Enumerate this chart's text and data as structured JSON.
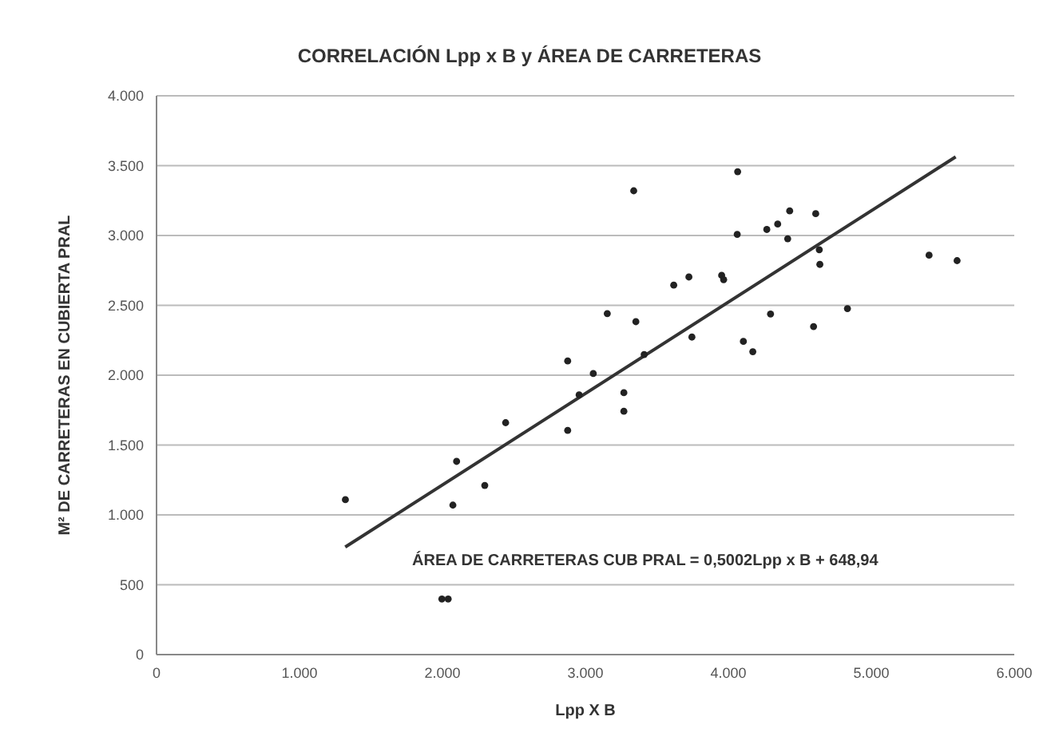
{
  "chart_data": {
    "type": "scatter",
    "title": "CORRELACIÓN Lpp x B y ÁREA DE CARRETERAS",
    "xlabel": "Lpp X B",
    "ylabel": "M² DE CARRETERAS EN CUBIERTA PRAL",
    "annotations": [
      "ÁREA DE CARRETERAS CUB PRAL = 0,5002Lpp x B + 648,94"
    ],
    "xlim": [
      0,
      6000
    ],
    "xticks": [
      0,
      {
        "value": 1000,
        "label": "1.000"
      },
      {
        "value": 2000,
        "label": "2.000"
      },
      {
        "value": 3000,
        "label": "3.000"
      },
      {
        "value": 4000,
        "label": "4.000"
      },
      {
        "value": 5000,
        "label": "5.000"
      },
      {
        "value": 6000,
        "label": "6.000"
      }
    ],
    "ylim": [
      0,
      4000
    ],
    "yticks": [
      0,
      500,
      {
        "value": 1000,
        "label": "1.000"
      },
      {
        "value": 1500,
        "label": "1.500"
      },
      {
        "value": 2000,
        "label": "2.000"
      },
      {
        "value": 2500,
        "label": "2.500"
      },
      {
        "value": 3000,
        "label": "3.000"
      },
      {
        "value": 3500,
        "label": "3.500"
      },
      {
        "value": 4000,
        "label": "4.000"
      }
    ],
    "grid": "y",
    "legend": false,
    "marker": "circle",
    "series": [
      {
        "color": "#222222",
        "x": [
          1321,
          1996,
          2040,
          2073,
          2099,
          2296,
          2442,
          2876,
          2876,
          2956,
          3055,
          3153,
          3269,
          3269,
          3338,
          3353,
          3411,
          3618,
          3724,
          3745,
          3953,
          3967,
          4065,
          4062,
          4105,
          4171,
          4295,
          4269,
          4345,
          4415,
          4429,
          4596,
          4611,
          4636,
          4640,
          4833,
          5404,
          5600
        ],
        "values": [
          1109,
          398,
          398,
          1070,
          1383,
          1211,
          1660,
          2102,
          1605,
          1859,
          2012,
          2441,
          1875,
          1742,
          3320,
          2383,
          2148,
          2645,
          2703,
          2273,
          2715,
          2684,
          3457,
          3008,
          2242,
          2168,
          2438,
          3043,
          3082,
          2977,
          3176,
          2348,
          3156,
          2898,
          2793,
          2477,
          2859,
          2820
        ]
      },
      {
        "type": "line",
        "color": "#333333",
        "marker": "none",
        "x": [
          1320,
          5590
        ],
        "values": [
          770,
          3563
        ]
      }
    ]
  }
}
